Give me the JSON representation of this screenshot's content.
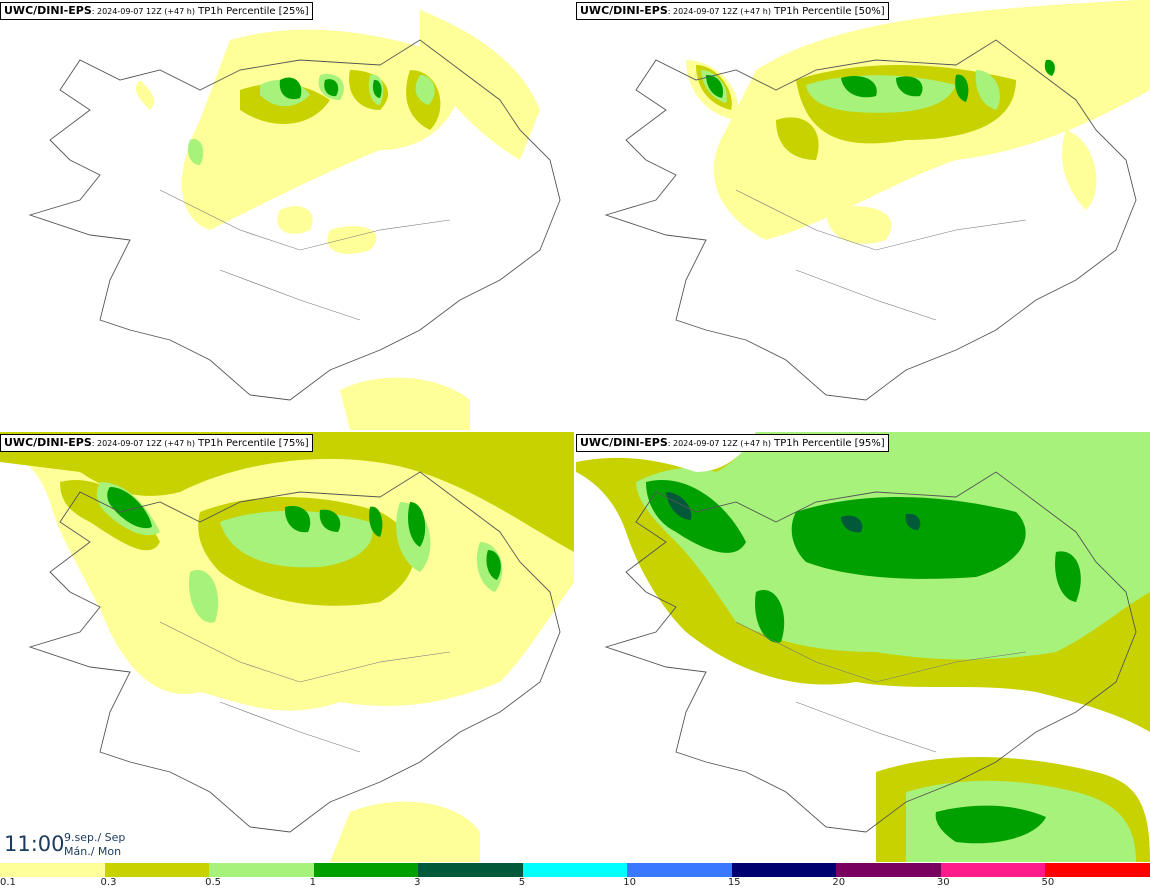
{
  "panels": [
    {
      "model": "UWC/DINI-EPS",
      "run": ": 2024-09-07 12Z (+47 h)",
      "field": " TP1h Percentile [25%]"
    },
    {
      "model": "UWC/DINI-EPS",
      "run": ": 2024-09-07 12Z (+47 h)",
      "field": " TP1h Percentile [50%]"
    },
    {
      "model": "UWC/DINI-EPS",
      "run": ": 2024-09-07 12Z (+47 h)",
      "field": " TP1h Percentile [75%]"
    },
    {
      "model": "UWC/DINI-EPS",
      "run": ": 2024-09-07 12Z (+47 h)",
      "field": " TP1h Percentile [95%]"
    }
  ],
  "valid_time": {
    "time": "11:00",
    "date": "9.sep./ Sep",
    "weekday": "Mán./ Mon"
  },
  "legend": {
    "labels": [
      "0.1",
      "0.3",
      "0.5",
      "1",
      "3",
      "5",
      "10",
      "15",
      "20",
      "30",
      "50"
    ],
    "colors": [
      "#ffff99",
      "#c8d200",
      "#a6f27a",
      "#00a000",
      "#005a3a",
      "#00ffff",
      "#3a78ff",
      "#000070",
      "#7a0060",
      "#ff1a8c",
      "#ff0000"
    ]
  },
  "colors": {
    "coast": "#555555",
    "light": "#ffff99",
    "olive": "#c8d200",
    "lightgreen": "#a6f27a",
    "green": "#00a000",
    "dark": "#005a3a"
  }
}
